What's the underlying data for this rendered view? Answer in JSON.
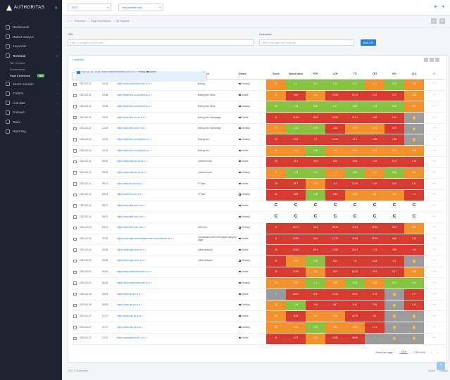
{
  "brand": {
    "name": "AUTHORITAS"
  },
  "sidebar": {
    "items": [
      {
        "label": "Dashboards",
        "icon": "dashboard-icon",
        "chev": false
      },
      {
        "label": "Market analysis",
        "icon": "market-icon",
        "chev": true
      },
      {
        "label": "Keywords",
        "icon": "keywords-icon",
        "chev": true
      },
      {
        "label": "Technical",
        "icon": "technical-icon",
        "chev": true,
        "active": true
      },
      {
        "label": "Search console",
        "icon": "search-console-icon",
        "chev": true
      },
      {
        "label": "Content",
        "icon": "content-icon",
        "chev": true
      },
      {
        "label": "Link data",
        "icon": "link-icon",
        "chev": true
      },
      {
        "label": "Outreach",
        "icon": "outreach-icon",
        "chev": true
      },
      {
        "label": "Tasks",
        "icon": "tasks-icon",
        "chev": false
      },
      {
        "label": "Reporting",
        "icon": "reporting-icon",
        "chev": true
      }
    ],
    "technical_sub": [
      {
        "label": "Site Checker"
      },
      {
        "label": "Performance"
      },
      {
        "label": "Page Experience",
        "badge": "NEW",
        "on": true
      }
    ]
  },
  "topbar": {
    "project": "TEST",
    "domain": "www.testsite.com"
  },
  "breadcrumb": {
    "items": [
      "Technical",
      "Page Experience",
      "All Reports"
    ]
  },
  "filters": {
    "url_label": "URL",
    "url_placeholder": "Filter or navigate to a URL here",
    "comment_label": "Comment",
    "comment_placeholder": "Write a message here (optional)",
    "apply_label": "ANALYSE"
  },
  "table": {
    "selected": "1 selected",
    "columns": [
      "Date",
      "Time",
      "URL",
      "Comment",
      "Device",
      "Score",
      "Speed Index",
      "FCP",
      "LCP",
      "TTI",
      "TBT",
      "FID",
      "CLS",
      "#"
    ],
    "rows": [
      {
        "date": "2021-02-11",
        "time": "10:18",
        "url": "https://www.authoritas.com/",
        "comment": "testing",
        "device": "Mobile",
        "sel": true,
        "m": [
          [
            "51",
            "o"
          ],
          [
            "4.62",
            "o"
          ],
          [
            "3.21",
            "o"
          ],
          [
            "7.98",
            "r"
          ],
          [
            "6.34",
            "r"
          ],
          [
            "1.20",
            "r"
          ],
          [
            "0.09",
            "r"
          ],
          [
            "0.06",
            "o"
          ]
        ]
      },
      {
        "date": "2021-02-11",
        "time": "10:18",
        "url": "https://www.authoritas.com/",
        "comment": "testing",
        "device": "Desktop",
        "m": [
          [
            "89",
            "o"
          ],
          [
            "1.3",
            "g"
          ],
          [
            "0.57",
            "g"
          ],
          [
            "1.24",
            "g"
          ],
          [
            "2.11",
            "g"
          ],
          [
            "0.11",
            "o"
          ],
          [
            "0.06",
            "g"
          ],
          [
            "0.15",
            "o"
          ]
        ]
      },
      {
        "date": "2021-02-11",
        "time": "10:08",
        "url": "https://www.bbc.co.uk/news",
        "comment": "testing bbc news",
        "device": "Mobile",
        "m": [
          [
            "62",
            "o"
          ],
          [
            "6.64",
            "r"
          ],
          [
            "2.6",
            "o"
          ],
          [
            "10.58",
            "r"
          ],
          [
            "15.12",
            "r"
          ],
          [
            "3.29",
            "r"
          ],
          [
            "0.10",
            "r"
          ],
          [
            "0.06",
            "o"
          ]
        ]
      },
      {
        "date": "2021-02-11",
        "time": "10:08",
        "url": "https://www.bbc.co.uk/news",
        "comment": "testing bbc news",
        "device": "Desktop",
        "m": [
          [
            "93",
            "g"
          ],
          [
            "1.16",
            "g"
          ],
          [
            "0.56",
            "g"
          ],
          [
            "1.27",
            "g"
          ],
          [
            "1.84",
            "g"
          ],
          [
            "0.19",
            "g"
          ],
          [
            "0.06",
            "g"
          ],
          [
            "0.02",
            "o"
          ]
        ]
      },
      {
        "date": "2021-02-11",
        "time": "10:02",
        "url": "https://www.bbc.co.uk/",
        "comment": "testing bbc homepage",
        "device": "Mobile",
        "m": [
          [
            "11",
            "r"
          ],
          [
            "11.65",
            "r"
          ],
          [
            "8.63",
            "r"
          ],
          [
            "22.94",
            "r"
          ],
          [
            "27.21",
            "r"
          ],
          [
            "2.98",
            "r"
          ],
          [
            "1.53",
            "r"
          ],
          [
            "?",
            "y"
          ]
        ]
      },
      {
        "date": "2021-02-11",
        "time": "10:02",
        "url": "https://www.bbc.co.uk/",
        "comment": "testing bbc homepage",
        "device": "Desktop",
        "m": [
          [
            "74",
            "o"
          ],
          [
            "1.20",
            "g"
          ],
          [
            "1.09",
            "g"
          ],
          [
            "4.88",
            "r"
          ],
          [
            "9.01",
            "o"
          ],
          [
            "0.23",
            "o"
          ],
          [
            "0.22",
            "r"
          ],
          [
            "?",
            "y"
          ]
        ]
      },
      {
        "date": "2021-02-11",
        "time": "10:01",
        "url": "https://www.bbc.co.uk/sport",
        "comment": "testing bbc",
        "device": "Desktop",
        "m": [
          [
            "22",
            "r"
          ],
          [
            "4.91",
            "r"
          ],
          [
            "3.7",
            "r"
          ],
          [
            "14.91",
            "r"
          ],
          [
            "11.8",
            "r"
          ],
          [
            "1.88",
            "r"
          ],
          [
            "1.66",
            "r"
          ],
          [
            "?",
            "y"
          ]
        ]
      },
      {
        "date": "2021-02-11",
        "time": "10:01",
        "url": "https://www.bbc.co.uk/sport",
        "comment": "testing bbc",
        "device": "Mobile",
        "m": [
          [
            "26",
            "o"
          ],
          [
            "4.61",
            "o"
          ],
          [
            "1.96",
            "g"
          ],
          [
            "2.8",
            "o"
          ],
          [
            "2.97",
            "o"
          ],
          [
            "0.07",
            "o"
          ],
          [
            "0.01",
            "o"
          ],
          [
            "0.08",
            "o"
          ]
        ]
      },
      {
        "date": "2021-02-11",
        "time": "09:32",
        "url": "https://www.cats.co.uk/",
        "comment": "comment one",
        "device": "Mobile",
        "m": [
          [
            "30",
            "r"
          ],
          [
            "11.2",
            "r"
          ],
          [
            "4.24",
            "r"
          ],
          [
            "6.69",
            "r"
          ],
          [
            "9.06",
            "r"
          ],
          [
            "1.00",
            "r"
          ],
          [
            "1.03",
            "r"
          ],
          [
            "1.15",
            "r"
          ]
        ]
      },
      {
        "date": "2021-02-11",
        "time": "09:32",
        "url": "https://www.cats.co.uk/",
        "comment": "comment one",
        "device": "Desktop",
        "m": [
          [
            "70",
            "o"
          ],
          [
            "1.45",
            "g"
          ],
          [
            "1.31",
            "g"
          ],
          [
            "2.1",
            "o"
          ],
          [
            "2.89",
            "g"
          ],
          [
            "0.11",
            "o"
          ],
          [
            "0.06",
            "g"
          ],
          [
            "0.41",
            "o"
          ]
        ]
      },
      {
        "date": "2021-02-11",
        "time": "09:14",
        "url": "https://www.ft.com/",
        "comment": "FT test",
        "device": "Mobile",
        "m": [
          [
            "15",
            "r"
          ],
          [
            "29.7",
            "r"
          ],
          [
            "2.77",
            "o"
          ],
          [
            "9.1",
            "r"
          ],
          [
            "27.09",
            "r"
          ],
          [
            "1.66",
            "r"
          ],
          [
            "0.26",
            "r"
          ],
          [
            "1.21",
            "r"
          ]
        ]
      },
      {
        "date": "2021-02-11",
        "time": "09:14",
        "url": "https://www.ft.com/",
        "comment": "FT test",
        "device": "Desktop",
        "m": [
          [
            "41",
            "r"
          ],
          [
            "6.69",
            "r"
          ],
          [
            "1.06",
            "g"
          ],
          [
            "6.19",
            "r"
          ],
          [
            "2.39",
            "o"
          ],
          [
            "0.9",
            "o"
          ],
          [
            "0.5",
            "o"
          ],
          [
            "1.1",
            "r"
          ]
        ]
      },
      {
        "date": "2021-02-11",
        "time": "08:37",
        "url": "https://www.test.com/",
        "comment": "",
        "device": "Mobile",
        "m": [
          [
            "C",
            "l"
          ],
          [
            "C",
            "l"
          ],
          [
            "C",
            "l"
          ],
          [
            "C",
            "l"
          ],
          [
            "C",
            "l"
          ],
          [
            "C",
            "l"
          ],
          [
            "C",
            "l"
          ],
          [
            "C",
            "l"
          ]
        ]
      },
      {
        "date": "2021-02-11",
        "time": "08:37",
        "url": "https://www.test.com/",
        "comment": "",
        "device": "Desktop",
        "m": [
          [
            "C",
            "l"
          ],
          [
            "C",
            "l"
          ],
          [
            "C",
            "l"
          ],
          [
            "C",
            "l"
          ],
          [
            "C",
            "l"
          ],
          [
            "C",
            "l"
          ],
          [
            "C",
            "l"
          ],
          [
            "C",
            "l"
          ]
        ]
      },
      {
        "date": "2021-02-04",
        "time": "15:41",
        "url": "https://www.test.com/",
        "comment": "403 error",
        "device": "Desktop",
        "m": [
          [
            "6",
            "r"
          ],
          [
            "18.73",
            "r"
          ],
          [
            "6.49",
            "r"
          ],
          [
            "30.75",
            "r"
          ],
          [
            "47.84",
            "r"
          ],
          [
            "27.52",
            "r"
          ],
          [
            "0.93",
            "r"
          ],
          [
            "0.22",
            "o"
          ]
        ]
      },
      {
        "date": "2021-02-02",
        "time": "15:30",
        "url": "https://www.uga.com/category/men-sale-trainers/",
        "comment": "Comparison with homepage category page",
        "device": "Mobile",
        "m": [
          [
            "6",
            "r"
          ],
          [
            "13.89",
            "r"
          ],
          [
            "9.94",
            "r"
          ],
          [
            "12.71",
            "r"
          ],
          [
            "42.65",
            "r"
          ],
          [
            "29.16",
            "r"
          ],
          [
            "5.56",
            "r"
          ],
          [
            "1.33",
            "r"
          ]
        ]
      },
      {
        "date": "2021-02-02",
        "time": "15:25",
        "url": "https://www.uga.com/",
        "comment": "Initial analysis",
        "device": "Mobile",
        "m": [
          [
            "13",
            "r"
          ],
          [
            "13.36",
            "r"
          ],
          [
            "5.81",
            "r"
          ],
          [
            "13.50",
            "r"
          ],
          [
            "24.47",
            "r"
          ],
          [
            "7.03",
            "r"
          ],
          [
            "2.99",
            "r"
          ],
          [
            "0.8",
            "r"
          ]
        ]
      },
      {
        "date": "2021-02-02",
        "time": "15:25",
        "url": "https://www.uga.com/",
        "comment": "Initial analysis",
        "device": "Desktop",
        "m": [
          [
            "37",
            "r"
          ],
          [
            "3.14",
            "o"
          ],
          [
            "1.06",
            "g"
          ],
          [
            "3.62",
            "r"
          ],
          [
            "7.8",
            "r"
          ],
          [
            "0.83",
            "r"
          ],
          [
            "0.2",
            "r"
          ],
          [
            "?",
            "y"
          ]
        ]
      },
      {
        "date": "2021-02-01",
        "time": "09:34",
        "url": "https://www.authoritas.com/",
        "comment": "",
        "device": "Mobile",
        "m": [
          [
            "38",
            "r"
          ],
          [
            "11.86",
            "r"
          ],
          [
            "3.6",
            "o"
          ],
          [
            "9.62",
            "r"
          ],
          [
            "16.22",
            "r"
          ],
          [
            "0.81",
            "r"
          ],
          [
            "0.27",
            "r"
          ],
          [
            "0.08",
            "o"
          ]
        ]
      },
      {
        "date": "2021-02-01",
        "time": "09:34",
        "url": "https://www.authoritas.com/",
        "comment": "",
        "device": "Desktop",
        "m": [
          [
            "74",
            "o"
          ],
          [
            "1.93",
            "o"
          ],
          [
            "1.1",
            "g"
          ],
          [
            "2.55",
            "o"
          ],
          [
            "2.09",
            "g"
          ],
          [
            "0.33",
            "o"
          ],
          [
            "0.07",
            "g"
          ],
          [
            "0.00",
            "g"
          ]
        ]
      },
      {
        "date": "2021-01-19",
        "time": "09:53",
        "url": "https://www.fpz.pt/",
        "comment": "",
        "device": "Mobile",
        "m": [
          [
            "?",
            "n"
          ],
          [
            "16.97",
            "r"
          ],
          [
            "14.31",
            "r"
          ],
          [
            "12.11",
            "r"
          ],
          [
            "23.11",
            "r"
          ],
          [
            "3.79",
            "r"
          ],
          [
            "?",
            "y"
          ],
          [
            "1.77",
            "r"
          ]
        ]
      },
      {
        "date": "2021-01-19",
        "time": "09:53",
        "url": "https://www.fpz.pt/",
        "comment": "",
        "device": "Desktop",
        "m": [
          [
            "71",
            "o"
          ],
          [
            "1.18",
            "g"
          ],
          [
            "3.48",
            "r"
          ],
          [
            "4.57",
            "r"
          ],
          [
            "9.41",
            "r"
          ],
          [
            "2.98",
            "r"
          ],
          [
            "?",
            "y"
          ],
          [
            "1.12",
            "r"
          ]
        ]
      },
      {
        "date": "2021-01-27",
        "time": "07:47",
        "url": "https://www.vaz.pt/",
        "comment": "",
        "device": "Mobile",
        "m": [
          [
            "53",
            "o"
          ],
          [
            "8.33",
            "r"
          ],
          [
            "4.61",
            "o"
          ],
          [
            "4.15",
            "o"
          ],
          [
            "14.75",
            "r"
          ],
          [
            "4.5",
            "r"
          ],
          [
            "?",
            "y"
          ],
          [
            "?",
            "y"
          ]
        ]
      },
      {
        "date": "2021-01-27",
        "time": "07:47",
        "url": "https://www.vaz.pt/",
        "comment": "",
        "device": "Desktop",
        "m": [
          [
            "63",
            "o"
          ],
          [
            "2.43",
            "o"
          ],
          [
            "1.09",
            "g"
          ],
          [
            "3.57",
            "o"
          ],
          [
            "4.25",
            "o"
          ],
          [
            "1.41",
            "r"
          ],
          [
            "?",
            "y"
          ],
          [
            "?",
            "y"
          ]
        ]
      },
      {
        "date": "2021-01-27",
        "time": "10:37",
        "url": "https://wpstrainer.com/",
        "comment": "",
        "device": "Mobile",
        "m": [
          [
            "11",
            "r"
          ],
          [
            "6.47",
            "r"
          ],
          [
            "3.36",
            "o"
          ],
          [
            "24.82",
            "r"
          ],
          [
            "20.68",
            "r"
          ],
          [
            "?",
            "n"
          ],
          [
            "?",
            "y"
          ],
          [
            "?",
            "y"
          ]
        ]
      }
    ],
    "pager": {
      "rows_label": "Rows per page:",
      "rows_value": "25",
      "range": "1-25 of 45"
    }
  },
  "footer": {
    "copyright": "2021 © Authoritas",
    "links": [
      "About",
      "Contact"
    ]
  }
}
